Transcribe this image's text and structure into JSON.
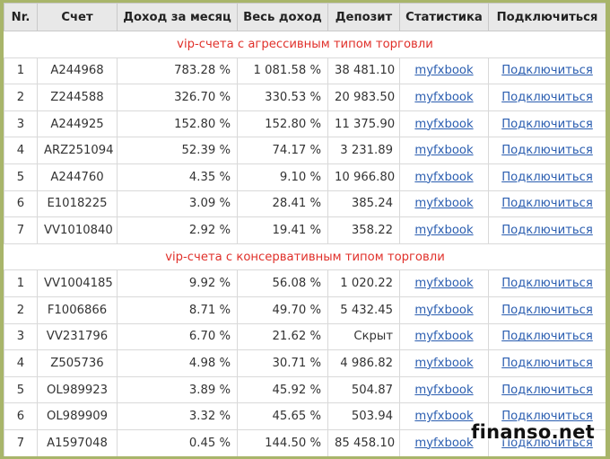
{
  "headers": [
    "Nr.",
    "Счет",
    "Доход за месяц",
    "Весь доход",
    "Депозит",
    "Статистика",
    "Подключиться"
  ],
  "sections": [
    {
      "title": "vip-счета с агрессивным типом торговли",
      "rows": [
        {
          "nr": "1",
          "account": "A244968",
          "month": "783.28 %",
          "total": "1 081.58 %",
          "deposit": "38 481.10",
          "stats": "myfxbook",
          "connect": "Подключиться"
        },
        {
          "nr": "2",
          "account": "Z244588",
          "month": "326.70 %",
          "total": "330.53 %",
          "deposit": "20 983.50",
          "stats": "myfxbook",
          "connect": "Подключиться"
        },
        {
          "nr": "3",
          "account": "A244925",
          "month": "152.80 %",
          "total": "152.80 %",
          "deposit": "11 375.90",
          "stats": "myfxbook",
          "connect": "Подключиться"
        },
        {
          "nr": "4",
          "account": "ARZ251094",
          "month": "52.39 %",
          "total": "74.17 %",
          "deposit": "3 231.89",
          "stats": "myfxbook",
          "connect": "Подключиться"
        },
        {
          "nr": "5",
          "account": "A244760",
          "month": "4.35 %",
          "total": "9.10 %",
          "deposit": "10 966.80",
          "stats": "myfxbook",
          "connect": "Подключиться"
        },
        {
          "nr": "6",
          "account": "E1018225",
          "month": "3.09 %",
          "total": "28.41 %",
          "deposit": "385.24",
          "stats": "myfxbook",
          "connect": "Подключиться"
        },
        {
          "nr": "7",
          "account": "VV1010840",
          "month": "2.92 %",
          "total": "19.41 %",
          "deposit": "358.22",
          "stats": "myfxbook",
          "connect": "Подключиться"
        }
      ]
    },
    {
      "title": "vip-счета с консервативным типом торговли",
      "rows": [
        {
          "nr": "1",
          "account": "VV1004185",
          "month": "9.92 %",
          "total": "56.08 %",
          "deposit": "1 020.22",
          "stats": "myfxbook",
          "connect": "Подключиться"
        },
        {
          "nr": "2",
          "account": "F1006866",
          "month": "8.71 %",
          "total": "49.70 %",
          "deposit": "5 432.45",
          "stats": "myfxbook",
          "connect": "Подключиться"
        },
        {
          "nr": "3",
          "account": "VV231796",
          "month": "6.70 %",
          "total": "21.62 %",
          "deposit": "Скрыт",
          "stats": "myfxbook",
          "connect": "Подключиться"
        },
        {
          "nr": "4",
          "account": "Z505736",
          "month": "4.98 %",
          "total": "30.71 %",
          "deposit": "4 986.82",
          "stats": "myfxbook",
          "connect": "Подключиться"
        },
        {
          "nr": "5",
          "account": "OL989923",
          "month": "3.89 %",
          "total": "45.92 %",
          "deposit": "504.87",
          "stats": "myfxbook",
          "connect": "Подключиться"
        },
        {
          "nr": "6",
          "account": "OL989909",
          "month": "3.32 %",
          "total": "45.65 %",
          "deposit": "503.94",
          "stats": "myfxbook",
          "connect": "Подключиться"
        },
        {
          "nr": "7",
          "account": "A1597048",
          "month": "0.45 %",
          "total": "144.50 %",
          "deposit": "85 458.10",
          "stats": "myfxbook",
          "connect": "Подключиться"
        }
      ]
    }
  ],
  "watermark": "finanso.net",
  "colors": {
    "section_title": "#e0302a",
    "link": "#2a5db0",
    "frame": "#a8b56a",
    "header_bg": "#e8e8e8"
  }
}
